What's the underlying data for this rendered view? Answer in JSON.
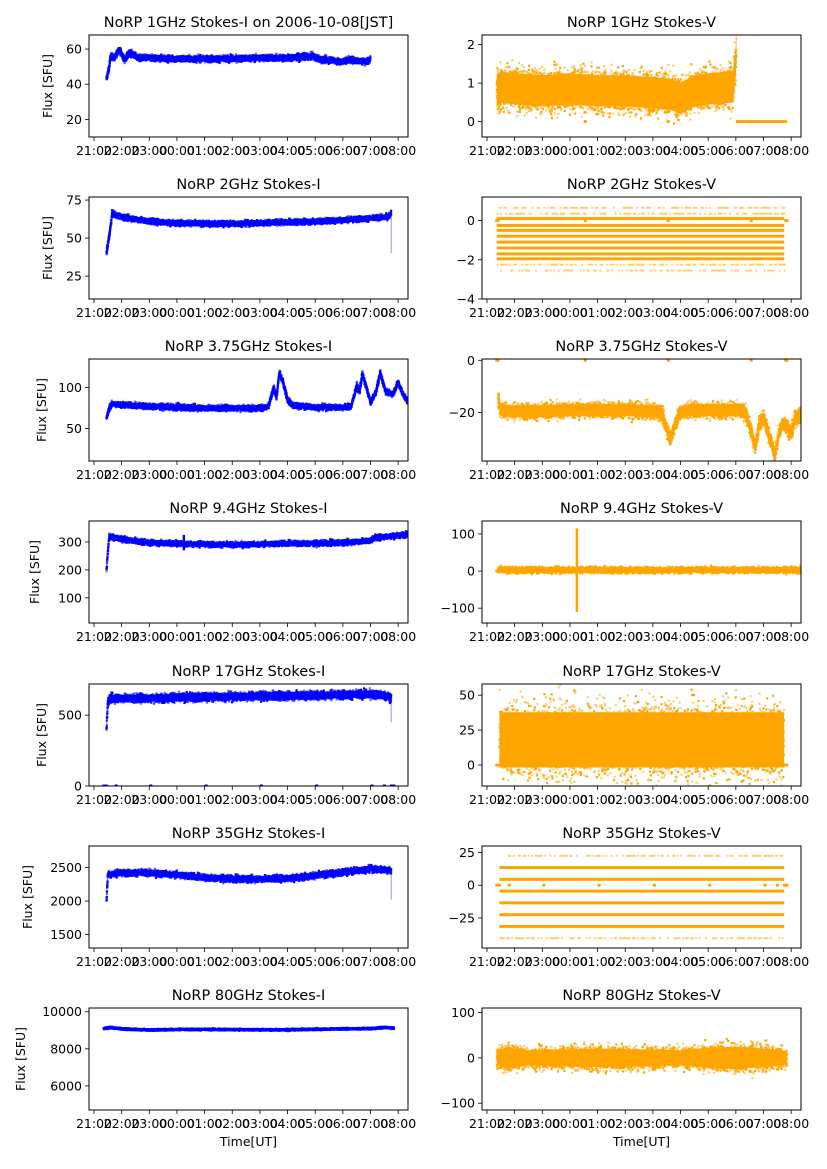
{
  "chart_data": {
    "type": "scatter",
    "layout": "7 rows x 2 columns grid",
    "x_tick_labels": [
      "21:00",
      "22:00",
      "23:00",
      "00:00",
      "01:00",
      "02:00",
      "03:00",
      "04:00",
      "05:00",
      "06:00",
      "07:00",
      "08:00"
    ],
    "x_range_hours": [
      20.8,
      32.3
    ],
    "xlabel": "Time[UT]",
    "colors": {
      "stokes_i": "#0000ff",
      "stokes_v": "#ffa500"
    },
    "panels": [
      {
        "id": "1ghz-i",
        "title": "NoRP 1GHz Stokes-I on 2006-10-08[JST]",
        "ylabel": "Flux [SFU]",
        "color": "stokes_i",
        "ylim": [
          10,
          68
        ],
        "yticks": [
          20,
          40,
          60
        ],
        "profile": [
          [
            21.45,
            43
          ],
          [
            21.55,
            50
          ],
          [
            21.6,
            56
          ],
          [
            21.75,
            55
          ],
          [
            21.9,
            60
          ],
          [
            22.1,
            54
          ],
          [
            22.3,
            58
          ],
          [
            22.6,
            55
          ],
          [
            23,
            55
          ],
          [
            0,
            54.5
          ],
          [
            1,
            54.5
          ],
          [
            2,
            54.5
          ],
          [
            3,
            55
          ],
          [
            4,
            55
          ],
          [
            4.9,
            56
          ],
          [
            5.2,
            54
          ],
          [
            5.6,
            54
          ],
          [
            5.9,
            52.5
          ],
          [
            6.2,
            54
          ],
          [
            6.5,
            53.5
          ],
          [
            6.9,
            53
          ],
          [
            7.0,
            55
          ]
        ],
        "spread": 1.5
      },
      {
        "id": "1ghz-v",
        "title": "NoRP 1GHz Stokes-V",
        "ylabel": "",
        "color": "stokes_v",
        "ylim": [
          -0.4,
          2.25
        ],
        "yticks": [
          0,
          1,
          2
        ],
        "profile": [
          [
            21.35,
            0.8
          ],
          [
            21.5,
            0.9
          ],
          [
            22,
            0.85
          ],
          [
            23,
            0.8
          ],
          [
            0,
            0.85
          ],
          [
            1,
            0.8
          ],
          [
            2,
            0.8
          ],
          [
            3,
            0.75
          ],
          [
            3.7,
            0.7
          ],
          [
            4,
            0.6
          ],
          [
            4.5,
            0.8
          ],
          [
            5,
            0.85
          ],
          [
            5.9,
            0.9
          ],
          [
            6.0,
            1.6
          ],
          [
            6.02,
            1.9
          ]
        ],
        "spread": 0.45,
        "baseline_segments": [
          [
            0.5,
            0.6
          ],
          [
            3.5,
            3.6
          ],
          [
            6.5,
            6.6
          ],
          [
            6.0,
            7.85
          ]
        ],
        "baseline_value": 0
      },
      {
        "id": "2ghz-i",
        "title": "NoRP 2GHz Stokes-I",
        "ylabel": "Flux [SFU]",
        "color": "stokes_i",
        "ylim": [
          10,
          77
        ],
        "yticks": [
          25,
          50,
          75
        ],
        "profile": [
          [
            21.45,
            40
          ],
          [
            21.6,
            58
          ],
          [
            21.65,
            66
          ],
          [
            22,
            64
          ],
          [
            23,
            61
          ],
          [
            0,
            60
          ],
          [
            1,
            59.5
          ],
          [
            2,
            59.5
          ],
          [
            3,
            60
          ],
          [
            4,
            60.5
          ],
          [
            5,
            61
          ],
          [
            6,
            62
          ],
          [
            7,
            63
          ],
          [
            7.65,
            64
          ],
          [
            7.75,
            67
          ]
        ],
        "spread": 1.5,
        "tail_drop": {
          "x": 7.75,
          "from": 66,
          "to": 40
        }
      },
      {
        "id": "2ghz-v",
        "title": "NoRP 2GHz Stokes-V",
        "ylabel": "",
        "color": "stokes_v",
        "ylim": [
          -4,
          1.2
        ],
        "yticks": [
          -4,
          -2,
          0
        ],
        "levels": [
          0.1,
          -0.25,
          -0.5,
          -0.8,
          -1.1,
          -1.4,
          -1.7,
          -1.95
        ],
        "sparse_levels": [
          0.35,
          -2.25,
          -2.55,
          0.65
        ],
        "x_span": [
          21.35,
          7.75
        ],
        "baseline_segments": [
          [
            21.3,
            21.45
          ],
          [
            0.5,
            0.6
          ],
          [
            3.5,
            3.6
          ],
          [
            6.5,
            6.6
          ],
          [
            7.75,
            7.9
          ]
        ],
        "baseline_value": 0
      },
      {
        "id": "3_75ghz-i",
        "title": "NoRP 3.75GHz Stokes-I",
        "ylabel": "Flux [SFU]",
        "color": "stokes_i",
        "ylim": [
          10,
          135
        ],
        "yticks": [
          50,
          100
        ],
        "profile": [
          [
            21.45,
            62
          ],
          [
            21.55,
            75
          ],
          [
            21.65,
            80
          ],
          [
            22,
            79
          ],
          [
            23,
            77
          ],
          [
            0,
            76
          ],
          [
            1,
            75
          ],
          [
            2,
            75
          ],
          [
            3,
            75
          ],
          [
            3.3,
            76
          ],
          [
            3.5,
            100
          ],
          [
            3.6,
            88
          ],
          [
            3.7,
            118
          ],
          [
            3.85,
            105
          ],
          [
            4.0,
            85
          ],
          [
            4.2,
            78
          ],
          [
            5,
            76
          ],
          [
            6,
            76
          ],
          [
            6.3,
            77
          ],
          [
            6.5,
            103
          ],
          [
            6.6,
            95
          ],
          [
            6.7,
            117
          ],
          [
            6.85,
            100
          ],
          [
            7.0,
            82
          ],
          [
            7.2,
            95
          ],
          [
            7.35,
            118
          ],
          [
            7.55,
            95
          ],
          [
            7.8,
            92
          ],
          [
            8.0,
            106
          ],
          [
            8.2,
            90
          ],
          [
            8.4,
            82
          ],
          [
            8.75,
            80
          ]
        ],
        "spread": 3,
        "x_offset_note": "times after 00:00 continue on 24h+ scale"
      },
      {
        "id": "3_75ghz-v",
        "title": "NoRP 3.75GHz Stokes-V",
        "ylabel": "",
        "color": "stokes_v",
        "ylim": [
          -38.5,
          0.5
        ],
        "yticks": [
          -20,
          0
        ],
        "profile": [
          [
            21.4,
            -15
          ],
          [
            21.5,
            -19
          ],
          [
            22,
            -19.5
          ],
          [
            23,
            -19.5
          ],
          [
            0,
            -19
          ],
          [
            1,
            -19
          ],
          [
            2,
            -19
          ],
          [
            3,
            -19.5
          ],
          [
            3.3,
            -20
          ],
          [
            3.5,
            -26
          ],
          [
            3.65,
            -30
          ],
          [
            3.8,
            -24
          ],
          [
            4.0,
            -20
          ],
          [
            4.3,
            -19
          ],
          [
            5,
            -19
          ],
          [
            6,
            -19
          ],
          [
            6.35,
            -20
          ],
          [
            6.55,
            -27
          ],
          [
            6.7,
            -33
          ],
          [
            6.85,
            -24
          ],
          [
            7.0,
            -22
          ],
          [
            7.3,
            -32
          ],
          [
            7.4,
            -37
          ],
          [
            7.55,
            -28
          ],
          [
            7.7,
            -24
          ],
          [
            7.85,
            -25
          ],
          [
            8.0,
            -28
          ],
          [
            8.15,
            -22
          ],
          [
            8.4,
            -21
          ],
          [
            8.75,
            -20
          ]
        ],
        "spread": 2.5,
        "baseline_segments": [
          [
            21.3,
            21.45
          ],
          [
            0.5,
            0.6
          ],
          [
            3.5,
            3.6
          ],
          [
            6.5,
            6.6
          ],
          [
            7.75,
            7.9
          ]
        ],
        "baseline_value": 0
      },
      {
        "id": "9_4ghz-i",
        "title": "NoRP 9.4GHz Stokes-I",
        "ylabel": "Flux [SFU]",
        "color": "stokes_i",
        "ylim": [
          10,
          375
        ],
        "yticks": [
          100,
          200,
          300
        ],
        "profile": [
          [
            21.45,
            200
          ],
          [
            21.5,
            270
          ],
          [
            21.55,
            320
          ],
          [
            22,
            310
          ],
          [
            23,
            298
          ],
          [
            0,
            295
          ],
          [
            1,
            292
          ],
          [
            2,
            290
          ],
          [
            3,
            292
          ],
          [
            4,
            295
          ],
          [
            5,
            295
          ],
          [
            6,
            298
          ],
          [
            7,
            305
          ],
          [
            7.15,
            315
          ],
          [
            7.6,
            320
          ],
          [
            8.4,
            328
          ],
          [
            8.75,
            328
          ]
        ],
        "spread": 8,
        "spike": {
          "x": 0.25,
          "from": 270,
          "to": 325
        },
        "tail_drop": {
          "x": 8.75,
          "from": 310,
          "to": 200
        }
      },
      {
        "id": "9_4ghz-v",
        "title": "NoRP 9.4GHz Stokes-V",
        "ylabel": "",
        "color": "stokes_v",
        "ylim": [
          -140,
          135
        ],
        "yticks": [
          -100,
          0,
          100
        ],
        "profile": [
          [
            21.4,
            3
          ],
          [
            8.75,
            3
          ]
        ],
        "spread": 7,
        "spike": {
          "x": 0.25,
          "from": -110,
          "to": 115
        },
        "baseline_segments": [
          [
            21.3,
            21.45
          ],
          [
            7.75,
            7.9
          ]
        ],
        "baseline_value": 0
      },
      {
        "id": "17ghz-i",
        "title": "NoRP 17GHz Stokes-I",
        "ylabel": "Flux [SFU]",
        "color": "stokes_i",
        "ylim": [
          0,
          720
        ],
        "yticks": [
          0,
          500
        ],
        "profile": [
          [
            21.45,
            410
          ],
          [
            21.5,
            600
          ],
          [
            21.6,
            620
          ],
          [
            23,
            620
          ],
          [
            0,
            625
          ],
          [
            1,
            628
          ],
          [
            2,
            632
          ],
          [
            3,
            635
          ],
          [
            4,
            637
          ],
          [
            5,
            642
          ],
          [
            6,
            645
          ],
          [
            7,
            648
          ],
          [
            7.5,
            640
          ],
          [
            7.75,
            620
          ]
        ],
        "spread": 25,
        "tail_drop": {
          "x": 7.75,
          "from": 600,
          "to": 450
        },
        "baseline_segments": [
          [
            21.3,
            21.5
          ],
          [
            21.75,
            21.85
          ],
          [
            23,
            23.1
          ],
          [
            1,
            1.1
          ],
          [
            3,
            3.1
          ],
          [
            5,
            5.1
          ],
          [
            7,
            7.1
          ],
          [
            7.45,
            7.55
          ],
          [
            7.7,
            7.9
          ]
        ],
        "baseline_value": 0
      },
      {
        "id": "17ghz-v",
        "title": "NoRP 17GHz Stokes-V",
        "ylabel": "",
        "color": "stokes_v",
        "ylim": [
          -15,
          58
        ],
        "yticks": [
          0,
          25,
          50
        ],
        "profile": [
          [
            21.45,
            18
          ],
          [
            7.75,
            18
          ]
        ],
        "spread": 22,
        "baseline_segments": [
          [
            21.3,
            21.5
          ],
          [
            1,
            1.1
          ],
          [
            3,
            3.1
          ],
          [
            7.75,
            7.9
          ]
        ],
        "baseline_value": 0
      },
      {
        "id": "35ghz-i",
        "title": "NoRP 35GHz Stokes-I",
        "ylabel": "Flux [SFU]",
        "color": "stokes_i",
        "ylim": [
          1300,
          2820
        ],
        "yticks": [
          1500,
          2000,
          2500
        ],
        "profile": [
          [
            21.45,
            2020
          ],
          [
            21.5,
            2400
          ],
          [
            22,
            2420
          ],
          [
            23,
            2420
          ],
          [
            0,
            2390
          ],
          [
            1,
            2350
          ],
          [
            2,
            2330
          ],
          [
            3,
            2330
          ],
          [
            4,
            2340
          ],
          [
            5,
            2380
          ],
          [
            6,
            2430
          ],
          [
            7,
            2480
          ],
          [
            7.75,
            2460
          ]
        ],
        "spread": 40,
        "tail_drop": {
          "x": 7.75,
          "from": 2400,
          "to": 2020
        }
      },
      {
        "id": "35ghz-v",
        "title": "NoRP 35GHz Stokes-V",
        "ylabel": "",
        "color": "stokes_v",
        "ylim": [
          -48,
          30
        ],
        "yticks": [
          -25,
          0,
          25
        ],
        "levels": [
          13.5,
          4.5,
          -4.5,
          -13.5,
          -22.5,
          -31.5
        ],
        "sparse_levels": [
          22.5,
          -40.5
        ],
        "x_span": [
          21.45,
          7.75
        ],
        "baseline_segments": [
          [
            21.3,
            21.5
          ],
          [
            21.75,
            21.85
          ],
          [
            23,
            23.1
          ],
          [
            1,
            1.1
          ],
          [
            3,
            3.1
          ],
          [
            5,
            5.1
          ],
          [
            7,
            7.1
          ],
          [
            7.45,
            7.55
          ],
          [
            7.7,
            7.9
          ]
        ],
        "baseline_value": 0
      },
      {
        "id": "80ghz-i",
        "title": "NoRP 80GHz Stokes-I",
        "ylabel": "Flux [SFU]",
        "color": "stokes_i",
        "ylim": [
          4700,
          10200
        ],
        "yticks": [
          6000,
          8000,
          10000
        ],
        "xlabel": "Time[UT]",
        "profile": [
          [
            21.35,
            9100
          ],
          [
            21.6,
            9150
          ],
          [
            22,
            9080
          ],
          [
            23,
            9020
          ],
          [
            0,
            9050
          ],
          [
            1,
            9050
          ],
          [
            2,
            9040
          ],
          [
            3,
            9030
          ],
          [
            4,
            9030
          ],
          [
            5,
            9060
          ],
          [
            6,
            9080
          ],
          [
            7,
            9100
          ],
          [
            7.5,
            9150
          ],
          [
            7.85,
            9120
          ]
        ],
        "spread": 40
      },
      {
        "id": "80ghz-v",
        "title": "NoRP 80GHz Stokes-V",
        "ylabel": "",
        "color": "stokes_v",
        "ylim": [
          -115,
          110
        ],
        "yticks": [
          -100,
          0,
          100
        ],
        "xlabel": "Time[UT]",
        "profile": [
          [
            21.35,
            0
          ],
          [
            7.85,
            0
          ]
        ],
        "spread": 45,
        "spread_profile": [
          [
            21.35,
            40
          ],
          [
            21.7,
            55
          ],
          [
            22.5,
            40
          ],
          [
            1,
            50
          ],
          [
            3,
            45
          ],
          [
            4,
            40
          ],
          [
            5,
            55
          ],
          [
            6,
            60
          ],
          [
            7,
            50
          ],
          [
            7.85,
            35
          ]
        ]
      }
    ]
  }
}
